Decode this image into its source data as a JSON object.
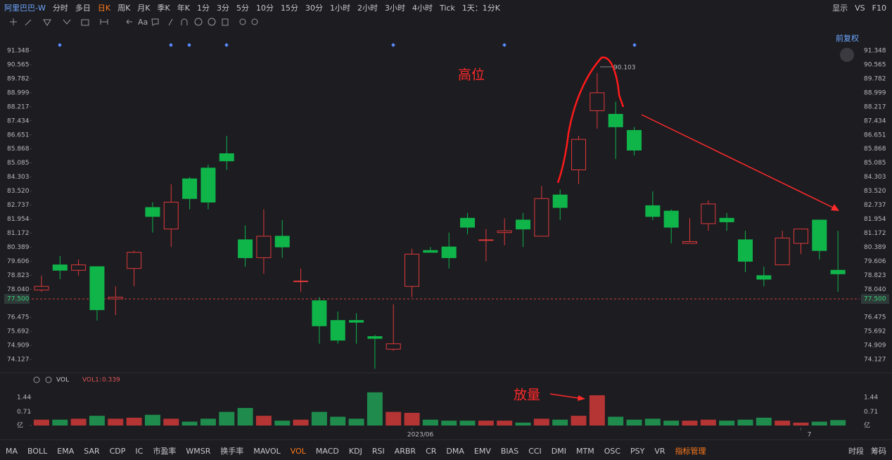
{
  "toolbar": {
    "symbol": "阿里巴巴-W",
    "periods": [
      "分时",
      "多日",
      "日K",
      "周K",
      "月K",
      "季K",
      "年K",
      "1分",
      "3分",
      "5分",
      "10分",
      "15分",
      "30分",
      "1小时",
      "2小时",
      "3小时",
      "4小时",
      "Tick",
      "1天：1分K"
    ],
    "active": 2,
    "right": [
      "显示",
      "VS",
      "F10"
    ],
    "font_tool": "Aa",
    "adjust": "前复权"
  },
  "indicator": {
    "name": "VOL",
    "label": "VOL1:",
    "value": "0.339"
  },
  "tabs": {
    "items": [
      "MA",
      "BOLL",
      "EMA",
      "SAR",
      "CDP",
      "IC",
      "市盈率",
      "WMSR",
      "换手率",
      "MAVOL",
      "VOL",
      "MACD",
      "KDJ",
      "RSI",
      "ARBR",
      "CR",
      "DMA",
      "EMV",
      "BIAS",
      "CCI",
      "DMI",
      "MTM",
      "OSC",
      "PSY",
      "VR",
      "指标管理"
    ],
    "active": [
      10,
      25
    ],
    "right": [
      "时段",
      "筹码"
    ]
  },
  "chart_data": [
    {
      "type": "candlestick",
      "categories": [
        null,
        null,
        null,
        null,
        null,
        null,
        null,
        null,
        null,
        null,
        null,
        null,
        null,
        null,
        null,
        null,
        null,
        null,
        null,
        null,
        "2023/06",
        null,
        null,
        null,
        null,
        null,
        null,
        null,
        null,
        null,
        null,
        null,
        null,
        null,
        null,
        null,
        null,
        null,
        null,
        null,
        null,
        "7",
        null,
        null
      ],
      "open": [
        78.0,
        79.4,
        79.1,
        79.3,
        77.5,
        79.2,
        82.6,
        81.4,
        84.2,
        84.8,
        85.6,
        80.8,
        79.8,
        81.0,
        78.5,
        77.4,
        76.3,
        76.3,
        75.4,
        74.7,
        78.2,
        80.2,
        80.4,
        82.0,
        80.8,
        81.2,
        81.9,
        81.0,
        83.3,
        84.7,
        88.0,
        87.8,
        86.9,
        82.7,
        82.4,
        80.6,
        81.7,
        82.0,
        80.8,
        78.8,
        79.4,
        80.6,
        81.9,
        79.1
      ],
      "high": [
        78.8,
        79.9,
        79.7,
        79.3,
        78.2,
        80.2,
        82.9,
        83.9,
        84.3,
        85.0,
        86.6,
        81.6,
        82.5,
        81.9,
        79.2,
        77.6,
        76.8,
        76.7,
        75.5,
        77.2,
        80.3,
        80.4,
        81.2,
        82.3,
        81.4,
        82.0,
        82.3,
        83.8,
        83.6,
        86.6,
        90.103,
        88.5,
        87.1,
        83.5,
        82.5,
        82.0,
        83.0,
        82.3,
        81.3,
        79.3,
        81.3,
        81.4,
        81.9,
        81.3
      ],
      "low": [
        77.9,
        78.6,
        78.8,
        76.3,
        76.6,
        78.2,
        81.2,
        80.4,
        82.5,
        82.5,
        84.7,
        79.3,
        78.9,
        79.8,
        77.9,
        75.0,
        75.0,
        75.0,
        73.6,
        74.6,
        77.6,
        80.1,
        79.2,
        81.1,
        79.6,
        80.5,
        80.4,
        81.0,
        81.9,
        83.9,
        87.0,
        85.3,
        85.5,
        81.9,
        80.6,
        80.6,
        81.3,
        81.3,
        79.0,
        78.2,
        79.4,
        80.0,
        79.7,
        77.9
      ],
      "close": [
        78.2,
        79.1,
        79.4,
        76.9,
        77.6,
        80.1,
        82.1,
        82.9,
        83.1,
        82.9,
        85.2,
        79.8,
        81.0,
        80.4,
        78.5,
        76.0,
        75.2,
        76.2,
        75.3,
        75.0,
        80.0,
        80.1,
        79.8,
        81.5,
        80.8,
        81.3,
        81.4,
        83.1,
        82.6,
        86.4,
        89.0,
        87.1,
        85.8,
        82.1,
        81.5,
        80.7,
        82.8,
        81.8,
        79.6,
        78.6,
        80.9,
        81.4,
        80.2,
        78.9
      ],
      "up_color": "#e03a3a",
      "down_color": "#10b54a",
      "ylim": [
        73.46,
        91.82
      ],
      "yticks": [
        91.348,
        90.565,
        89.782,
        88.999,
        88.217,
        87.434,
        86.651,
        85.868,
        85.085,
        84.303,
        {
          "value": 83.52,
          "label": "83.520"
        },
        82.737,
        81.954,
        81.172,
        80.389,
        79.606,
        78.823,
        {
          "value": 78.04,
          "label": "78.040"
        },
        76.475,
        75.692,
        74.909,
        74.127
      ],
      "price_line": {
        "value": 77.5,
        "label": "77.500"
      },
      "high_label": "90.103",
      "annotations": [
        "高位",
        "放量"
      ]
    },
    {
      "type": "bar",
      "values": [
        0.3,
        0.3,
        0.35,
        0.5,
        0.35,
        0.4,
        0.55,
        0.35,
        0.2,
        0.35,
        0.7,
        0.9,
        0.5,
        0.25,
        0.3,
        0.7,
        0.45,
        0.35,
        1.7,
        0.7,
        0.65,
        0.3,
        0.25,
        0.25,
        0.25,
        0.25,
        0.15,
        0.35,
        0.3,
        0.5,
        1.55,
        0.45,
        0.3,
        0.35,
        0.25,
        0.25,
        0.3,
        0.25,
        0.3,
        0.4,
        0.25,
        0.15,
        0.2,
        0.28
      ],
      "ylim": [
        0,
        1.8
      ],
      "yticks": [
        {
          "value": 0,
          "label": "亿"
        },
        0.71,
        1.44
      ]
    }
  ]
}
